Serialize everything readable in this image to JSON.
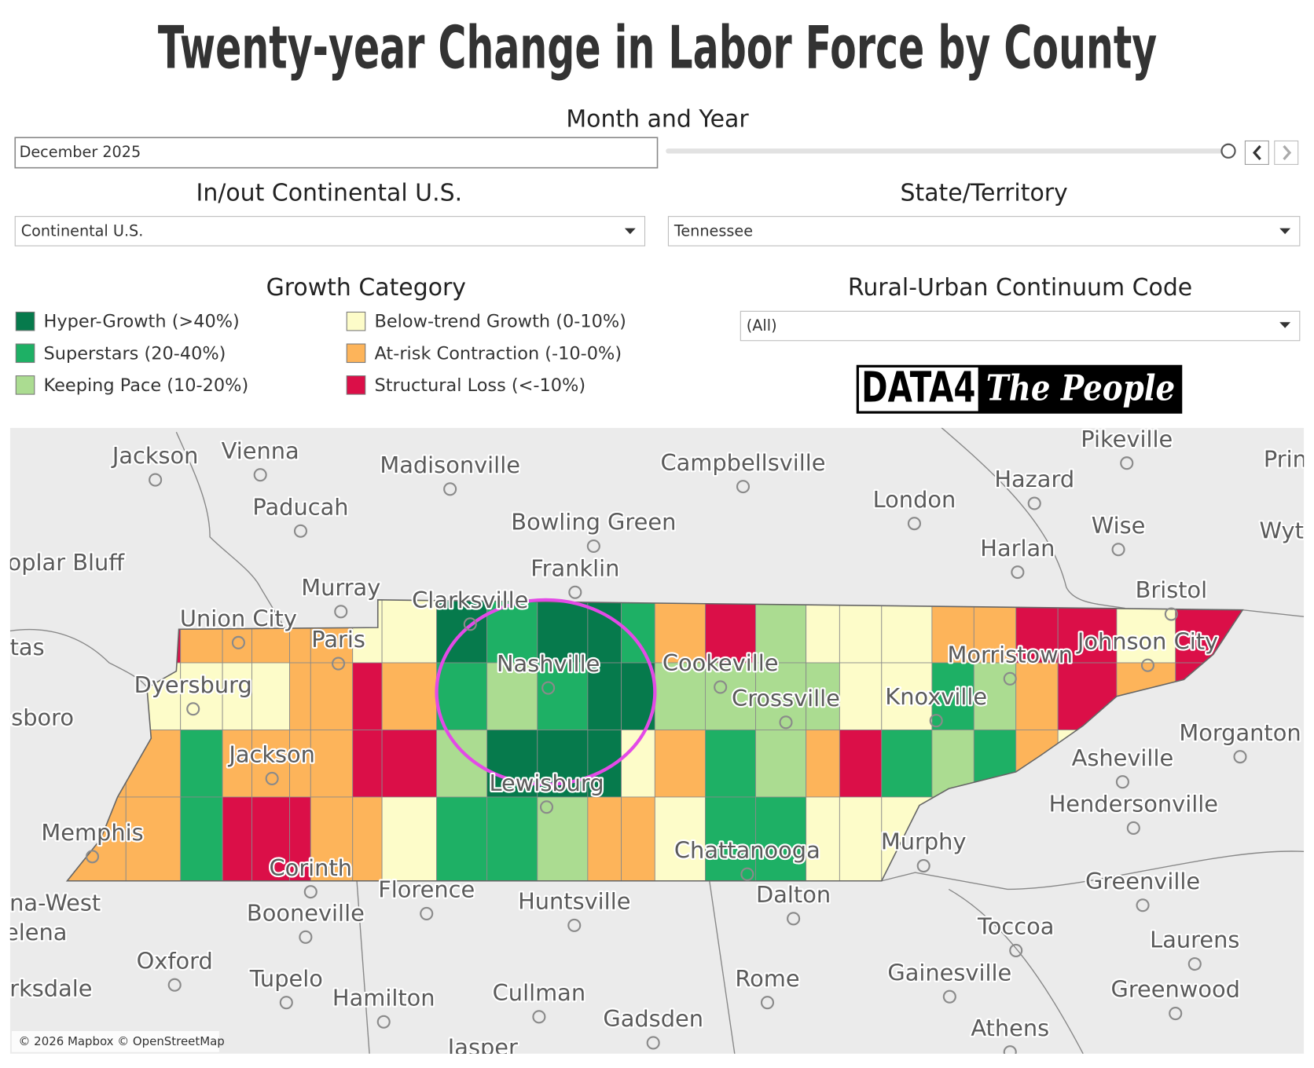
{
  "header": {
    "title": "Twenty-year Change in Labor Force by County"
  },
  "filters": {
    "month_year": {
      "label": "Month and Year",
      "value": "December 2025"
    },
    "continental": {
      "label": "In/out Continental U.S.",
      "value": "Continental U.S."
    },
    "state": {
      "label": "State/Territory",
      "value": "Tennessee"
    },
    "rucc": {
      "label": "Rural-Urban Continuum Code",
      "value": "(All)"
    }
  },
  "legend": {
    "title": "Growth Category",
    "items": [
      {
        "label": "Hyper-Growth (>40%)",
        "color": "#067a4c"
      },
      {
        "label": "Superstars (20-40%)",
        "color": "#1eb065"
      },
      {
        "label": "Keeping Pace (10-20%)",
        "color": "#abdc91"
      },
      {
        "label": "Below-trend Growth (0-10%)",
        "color": "#fdfcc9"
      },
      {
        "label": "At-risk Contraction (-10-0%)",
        "color": "#fdb45a"
      },
      {
        "label": "Structural Loss (<-10%)",
        "color": "#db0f48"
      }
    ]
  },
  "logo": {
    "left": "DATA4",
    "right": "The People"
  },
  "map": {
    "attribution": "© 2026 Mapbox © OpenStreetMap",
    "places": [
      "Jackson",
      "Vienna",
      "Madisonville",
      "Campbellsville",
      "Pikeville",
      "Princeton",
      "Hazard",
      "Paducah",
      "London",
      "Bowling Green",
      "Wise",
      "Wytheville",
      "Poplar Bluff",
      "Harlan",
      "Franklin",
      "Murray",
      "Bristol",
      "Clarksville",
      "Union City",
      "Pocahontas",
      "Paris",
      "Nashville",
      "Johnson City",
      "Morristown",
      "Cookeville",
      "Dyersburg",
      "Crossville",
      "Knoxville",
      "Jonesboro",
      "Morganton",
      "Jackson",
      "Asheville",
      "Lewisburg",
      "Hendersonville",
      "Memphis",
      "Chattanooga",
      "Murphy",
      "Corinth",
      "Greenville",
      "Florence",
      "Dalton",
      "Huntsville",
      "Helena-West",
      "Booneville",
      "Toccoa",
      "Helena",
      "Laurens",
      "Oxford",
      "Gainesville",
      "Tupelo",
      "Rome",
      "Clarksdale",
      "Greenwood",
      "Cullman",
      "Hamilton",
      "Gadsden",
      "Athens",
      "Jasper"
    ]
  }
}
